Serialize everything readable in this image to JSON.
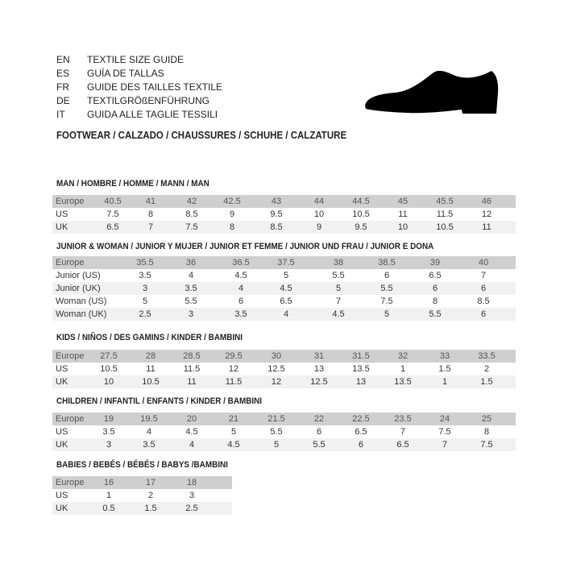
{
  "header": {
    "languages": [
      {
        "code": "EN",
        "text": "TEXTILE SIZE GUIDE"
      },
      {
        "code": "ES",
        "text": "GUÍA DE TALLAS"
      },
      {
        "code": "FR",
        "text": "GUIDE DES TAILLES TEXTILE"
      },
      {
        "code": "DE",
        "text": "TEXTILGRÖßENFÜHRUNG"
      },
      {
        "code": "IT",
        "text": "GUIDA ALLE TAGLIE TESSILI"
      }
    ],
    "footwear": "FOOTWEAR / CALZADO / CHAUSSURES / SCHUHE / CALZATURE",
    "icon": "shoe-silhouette-icon"
  },
  "colors": {
    "header_row": "#cfcfcf",
    "alt_row": "#f1f1f1",
    "text": "#222222"
  },
  "tables": [
    {
      "title": "MAN / HOMBRE / HOMME / MANN / MAN",
      "rows": [
        {
          "label": "Europe",
          "values": [
            "40.5",
            "41",
            "42",
            "42.5",
            "43",
            "44",
            "44.5",
            "45",
            "45.5",
            "46"
          ]
        },
        {
          "label": "US",
          "values": [
            "7.5",
            "8",
            "8.5",
            "9",
            "9.5",
            "10",
            "10.5",
            "11",
            "11.5",
            "12"
          ]
        },
        {
          "label": "UK",
          "values": [
            "6.5",
            "7",
            "7.5",
            "8",
            "8.5",
            "9",
            "9.5",
            "10",
            "10.5",
            "11"
          ]
        }
      ]
    },
    {
      "title": "JUNIOR & WOMAN / JUNIOR Y MUJER / JUNIOR ET FEMME / JUNIOR UND FRAU / JUNIOR E DONA",
      "rows": [
        {
          "label": "Europe",
          "values": [
            "35.5",
            "36",
            "36.5",
            "37.5",
            "38",
            "38.5",
            "39",
            "40"
          ]
        },
        {
          "label": "Junior (US)",
          "values": [
            "3.5",
            "4",
            "4.5",
            "5",
            "5.5",
            "6",
            "6.5",
            "7"
          ]
        },
        {
          "label": "Junior (UK)",
          "values": [
            "3",
            "3.5",
            "4",
            "4.5",
            "5",
            "5.5",
            "6",
            "6"
          ]
        },
        {
          "label": "Woman (US)",
          "values": [
            "5",
            "5.5",
            "6",
            "6.5",
            "7",
            "7.5",
            "8",
            "8.5"
          ]
        },
        {
          "label": "Woman (UK)",
          "values": [
            "2.5",
            "3",
            "3.5",
            "4",
            "4.5",
            "5",
            "5.5",
            "6"
          ]
        }
      ]
    },
    {
      "title": "KIDS / NIÑOS / DES GAMINS / KINDER / BAMBINI",
      "rows": [
        {
          "label": "Europe",
          "values": [
            "27.5",
            "28",
            "28.5",
            "29.5",
            "30",
            "31",
            "31.5",
            "32",
            "33",
            "33.5"
          ]
        },
        {
          "label": "US",
          "values": [
            "10.5",
            "11",
            "11.5",
            "12",
            "12.5",
            "13",
            "13.5",
            "1",
            "1.5",
            "2"
          ]
        },
        {
          "label": "UK",
          "values": [
            "10",
            "10.5",
            "11",
            "11.5",
            "12",
            "12.5",
            "13",
            "13.5",
            "1",
            "1.5"
          ]
        }
      ]
    },
    {
      "title": "CHILDREN / INFANTIL / ENFANTS / KINDER / BAMBINI",
      "rows": [
        {
          "label": "Europe",
          "values": [
            "19",
            "19.5",
            "20",
            "21",
            "21.5",
            "22",
            "22.5",
            "23.5",
            "24",
            "25"
          ]
        },
        {
          "label": "US",
          "values": [
            "3.5",
            "4",
            "4.5",
            "5",
            "5.5",
            "6",
            "6.5",
            "7",
            "7.5",
            "8"
          ]
        },
        {
          "label": "UK",
          "values": [
            "3",
            "3.5",
            "4",
            "4.5",
            "5",
            "5.5",
            "6",
            "6.5",
            "7",
            "7.5"
          ]
        }
      ]
    },
    {
      "title": "BABIES  / BEBÉS / BÉBÉS / BABYS /BAMBINI",
      "rows": [
        {
          "label": "Europe",
          "values": [
            "16",
            "17",
            "18"
          ]
        },
        {
          "label": "US",
          "values": [
            "1",
            "2",
            "3"
          ]
        },
        {
          "label": "UK",
          "values": [
            "0.5",
            "1.5",
            "2.5"
          ]
        }
      ]
    }
  ]
}
